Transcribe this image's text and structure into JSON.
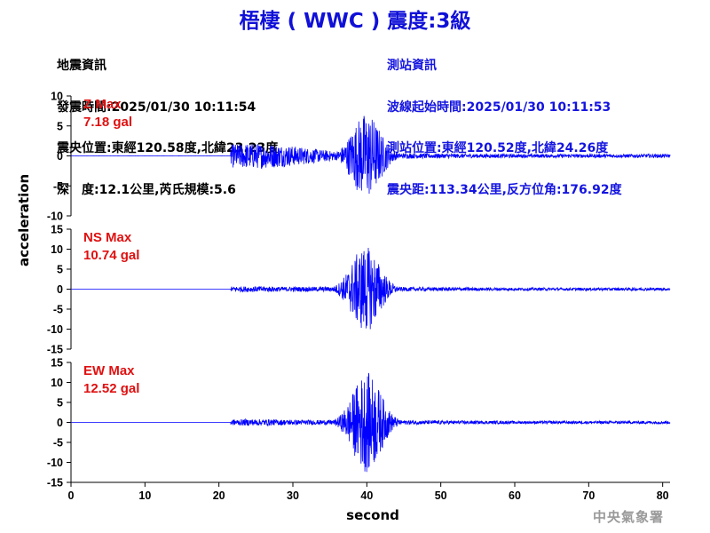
{
  "title": "梧棲 ( WWC ) 震度:3級",
  "quake_info": {
    "heading": "地震資訊",
    "origin_time": "發震時間:2025/01/30 10:11:54",
    "epicenter": "震央位置:東經120.58度,北緯23.23度",
    "depth_magnitude": "深　度:12.1公里,芮氏規模:5.6"
  },
  "station_info": {
    "heading": "測站資訊",
    "wave_start": "波線起始時間:2025/01/30 10:11:53",
    "station_position": "測站位置:東經120.52度,北緯24.26度",
    "distance_azimuth": "震央距:113.34公里,反方位角:176.92度"
  },
  "credit": "中央氣象署",
  "colors": {
    "title": "#1010d8",
    "trace": "#0000ff",
    "max_label": "#e01010",
    "station_info": "#1414e0"
  },
  "chart_data": {
    "type": "line",
    "xlabel": "second",
    "ylabel": "acceleration",
    "xlim": [
      0,
      81
    ],
    "x_ticks": [
      0,
      10,
      20,
      30,
      40,
      50,
      60,
      70,
      80
    ],
    "grid": false,
    "series": [
      {
        "name": "Z",
        "label": "Z Max",
        "max_text": "7.18 gal",
        "max": 7.18,
        "ylim": [
          -10,
          10
        ],
        "y_ticks": [
          -10,
          -5,
          0,
          5,
          10
        ],
        "onset": 21.6,
        "peak_time": 39.9,
        "base": 2.1,
        "tail": 0.5
      },
      {
        "name": "NS",
        "label": "NS Max",
        "max_text": "10.74 gal",
        "max": 10.74,
        "ylim": [
          -15,
          15
        ],
        "y_ticks": [
          -15,
          -10,
          -5,
          0,
          5,
          10,
          15
        ],
        "onset": 21.6,
        "peak_time": 39.8,
        "base": 0.7,
        "tail": 0.6
      },
      {
        "name": "EW",
        "label": "EW Max",
        "max_text": "12.52 gal",
        "max": 12.52,
        "ylim": [
          -15,
          15
        ],
        "y_ticks": [
          -15,
          -10,
          -5,
          0,
          5,
          10,
          15
        ],
        "onset": 21.6,
        "peak_time": 40.0,
        "base": 0.8,
        "tail": 0.6
      }
    ]
  }
}
